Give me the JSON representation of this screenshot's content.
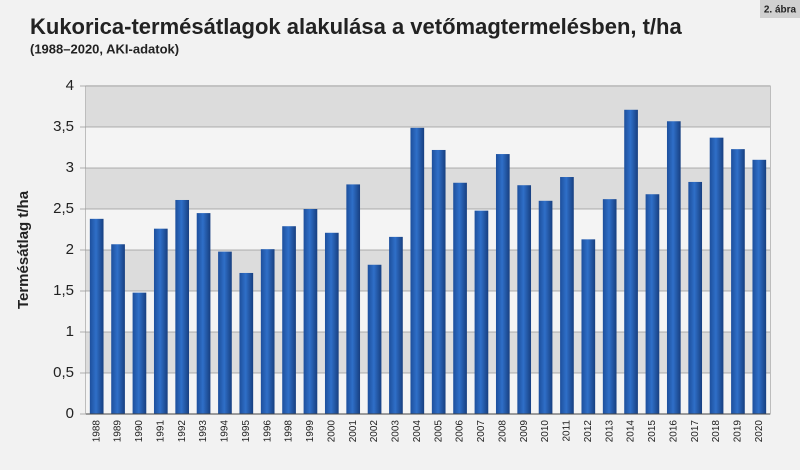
{
  "chart_data": {
    "type": "bar",
    "title": "Kukorica-termésátlagok alakulása a vetőmagtermelésben, t/ha",
    "subtitle": "(1988–2020, AKI-adatok)",
    "figure_label": "2. ábra",
    "y_label": "Termésátlag t/ha",
    "categories": [
      "1988",
      "1989",
      "1990",
      "1991",
      "1992",
      "1993",
      "1994",
      "1995",
      "1996",
      "1998",
      "1999",
      "2000",
      "2001",
      "2002",
      "2003",
      "2004",
      "2005",
      "2006",
      "2007",
      "2008",
      "2009",
      "2010",
      "2011",
      "2012",
      "2013",
      "2014",
      "2015",
      "2016",
      "2017",
      "2018",
      "2019",
      "2020"
    ],
    "values": [
      2.38,
      2.07,
      1.48,
      2.26,
      2.61,
      2.45,
      1.98,
      1.72,
      2.01,
      2.29,
      2.5,
      2.21,
      2.8,
      1.82,
      2.16,
      3.49,
      3.22,
      2.82,
      2.48,
      3.17,
      2.79,
      2.6,
      2.89,
      2.13,
      2.62,
      3.71,
      2.68,
      3.57,
      2.83,
      3.37,
      3.23,
      3.1
    ],
    "color": "#2f6fc8",
    "ylim": [
      0,
      4
    ],
    "yticks": [
      0,
      {
        "value": 0.5,
        "label": "0,5"
      },
      1,
      {
        "value": 1.5,
        "label": "1,5"
      },
      2,
      {
        "value": 2.5,
        "label": "2,5"
      },
      3,
      {
        "value": 3.5,
        "label": "3,5"
      },
      4
    ],
    "grid": true
  }
}
